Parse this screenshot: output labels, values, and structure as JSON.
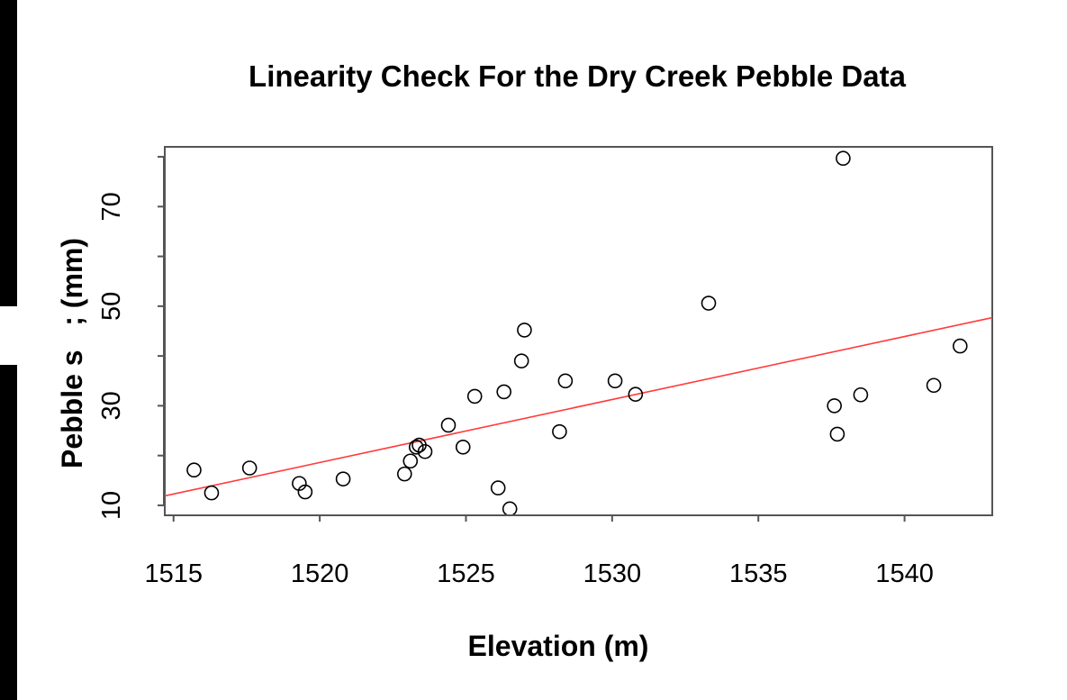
{
  "chart_data": {
    "type": "scatter",
    "title": "Linearity Check For the Dry Creek Pebble Data",
    "xlabel": "Elevation (m)",
    "ylabel": "Pebble s   ; (mm)",
    "xlim": [
      1514.7,
      1543.0
    ],
    "ylim": [
      8.0,
      82.0
    ],
    "x_ticks": [
      1515,
      1520,
      1525,
      1530,
      1535,
      1540
    ],
    "y_ticks": [
      10,
      20,
      30,
      40,
      50,
      60,
      70,
      80
    ],
    "y_tick_labels": [
      "10",
      "",
      "30",
      "",
      "50",
      "",
      "70",
      ""
    ],
    "grid": false,
    "points": [
      {
        "x": 1515.7,
        "y": 17.1
      },
      {
        "x": 1516.3,
        "y": 12.5
      },
      {
        "x": 1517.6,
        "y": 17.5
      },
      {
        "x": 1519.3,
        "y": 14.4
      },
      {
        "x": 1519.5,
        "y": 12.7
      },
      {
        "x": 1520.8,
        "y": 15.3
      },
      {
        "x": 1522.9,
        "y": 16.3
      },
      {
        "x": 1523.1,
        "y": 18.9
      },
      {
        "x": 1523.3,
        "y": 21.7
      },
      {
        "x": 1523.4,
        "y": 22.1
      },
      {
        "x": 1523.6,
        "y": 20.8
      },
      {
        "x": 1524.4,
        "y": 26.1
      },
      {
        "x": 1524.9,
        "y": 21.7
      },
      {
        "x": 1525.3,
        "y": 31.9
      },
      {
        "x": 1526.1,
        "y": 13.5
      },
      {
        "x": 1526.3,
        "y": 32.8
      },
      {
        "x": 1526.5,
        "y": 9.3
      },
      {
        "x": 1526.9,
        "y": 39.0
      },
      {
        "x": 1527.0,
        "y": 45.2
      },
      {
        "x": 1528.2,
        "y": 24.8
      },
      {
        "x": 1528.4,
        "y": 35.0
      },
      {
        "x": 1530.1,
        "y": 35.0
      },
      {
        "x": 1530.8,
        "y": 32.3
      },
      {
        "x": 1533.3,
        "y": 50.6
      },
      {
        "x": 1537.6,
        "y": 30.0
      },
      {
        "x": 1537.7,
        "y": 24.3
      },
      {
        "x": 1537.9,
        "y": 79.7
      },
      {
        "x": 1538.5,
        "y": 32.2
      },
      {
        "x": 1541.0,
        "y": 34.1
      },
      {
        "x": 1541.9,
        "y": 42.0
      }
    ],
    "fit_line": {
      "color": "#ff3b3b",
      "x": [
        1514.7,
        1543.0
      ],
      "y": [
        11.9,
        47.7
      ]
    },
    "point_color": "#000000"
  }
}
